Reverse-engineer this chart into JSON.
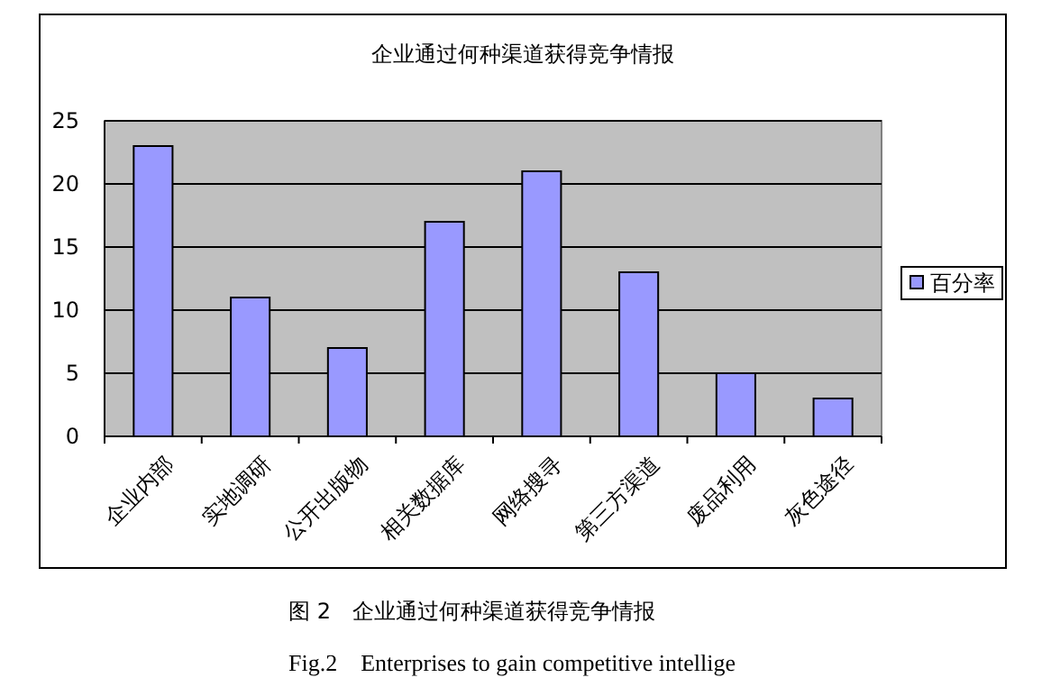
{
  "chart_data": {
    "type": "bar",
    "title": "企业通过何种渠道获得竞争情报",
    "categories": [
      "企业内部",
      "实地调研",
      "公开出版物",
      "相关数据库",
      "网络搜寻",
      "第三方渠道",
      "废品利用",
      "灰色途径"
    ],
    "series": [
      {
        "name": "百分率",
        "color": "#9999ff",
        "values": [
          23,
          11,
          7,
          17,
          21,
          13,
          5,
          3
        ]
      }
    ],
    "ylim": [
      0,
      25
    ],
    "yticks": [
      0,
      5,
      10,
      15,
      20,
      25
    ],
    "grid": "y",
    "legend": "right",
    "annotations": [
      "图 2　企业通过何种渠道获得竞争情报",
      "Fig.2　Enterprises to gain competitive intellige"
    ]
  }
}
